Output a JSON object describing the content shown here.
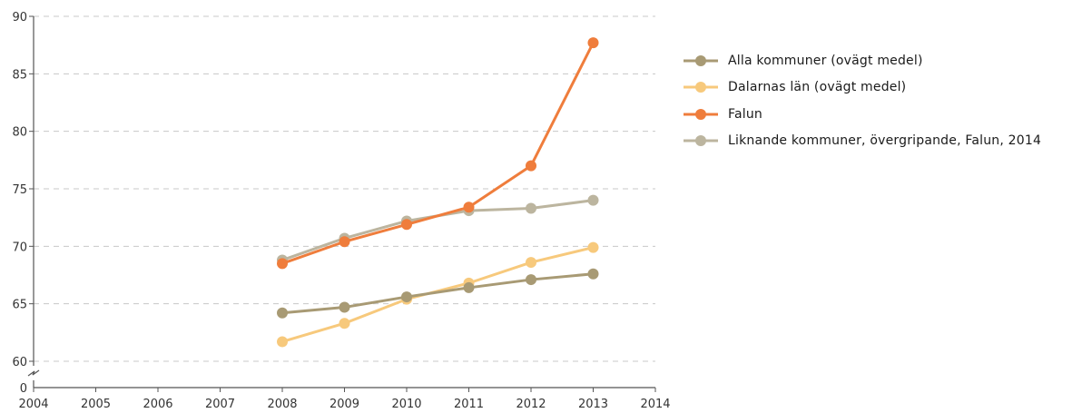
{
  "chart_data": {
    "type": "line",
    "x": [
      2008,
      2009,
      2010,
      2011,
      2012,
      2013
    ],
    "xlim": [
      2004,
      2014
    ],
    "x_ticks": [
      "2004",
      "2005",
      "2006",
      "2007",
      "2008",
      "2009",
      "2010",
      "2011",
      "2012",
      "2013",
      "2014"
    ],
    "ylim": [
      60,
      90
    ],
    "y_ticks": [
      "60",
      "65",
      "70",
      "75",
      "80",
      "85",
      "90"
    ],
    "y_zero_label": "0",
    "axis_break": true,
    "grid": "horizontal dashed",
    "legend_position": "right",
    "series": [
      {
        "name": "Alla kommuner (ovägt medel)",
        "color": "#a89a74",
        "values": [
          64.2,
          64.7,
          65.6,
          66.4,
          67.1,
          67.6
        ]
      },
      {
        "name": "Dalarnas län (ovägt medel)",
        "color": "#f7c97c",
        "values": [
          61.7,
          63.3,
          65.4,
          66.8,
          68.6,
          69.9
        ]
      },
      {
        "name": "Falun",
        "color": "#ef7d3c",
        "values": [
          68.5,
          70.4,
          71.9,
          73.4,
          77.0,
          87.7
        ]
      },
      {
        "name": "Liknande kommuner, övergripande, Falun, 2014",
        "color": "#bcb59f",
        "values": [
          68.8,
          70.7,
          72.2,
          73.1,
          73.3,
          74.0
        ]
      }
    ]
  }
}
